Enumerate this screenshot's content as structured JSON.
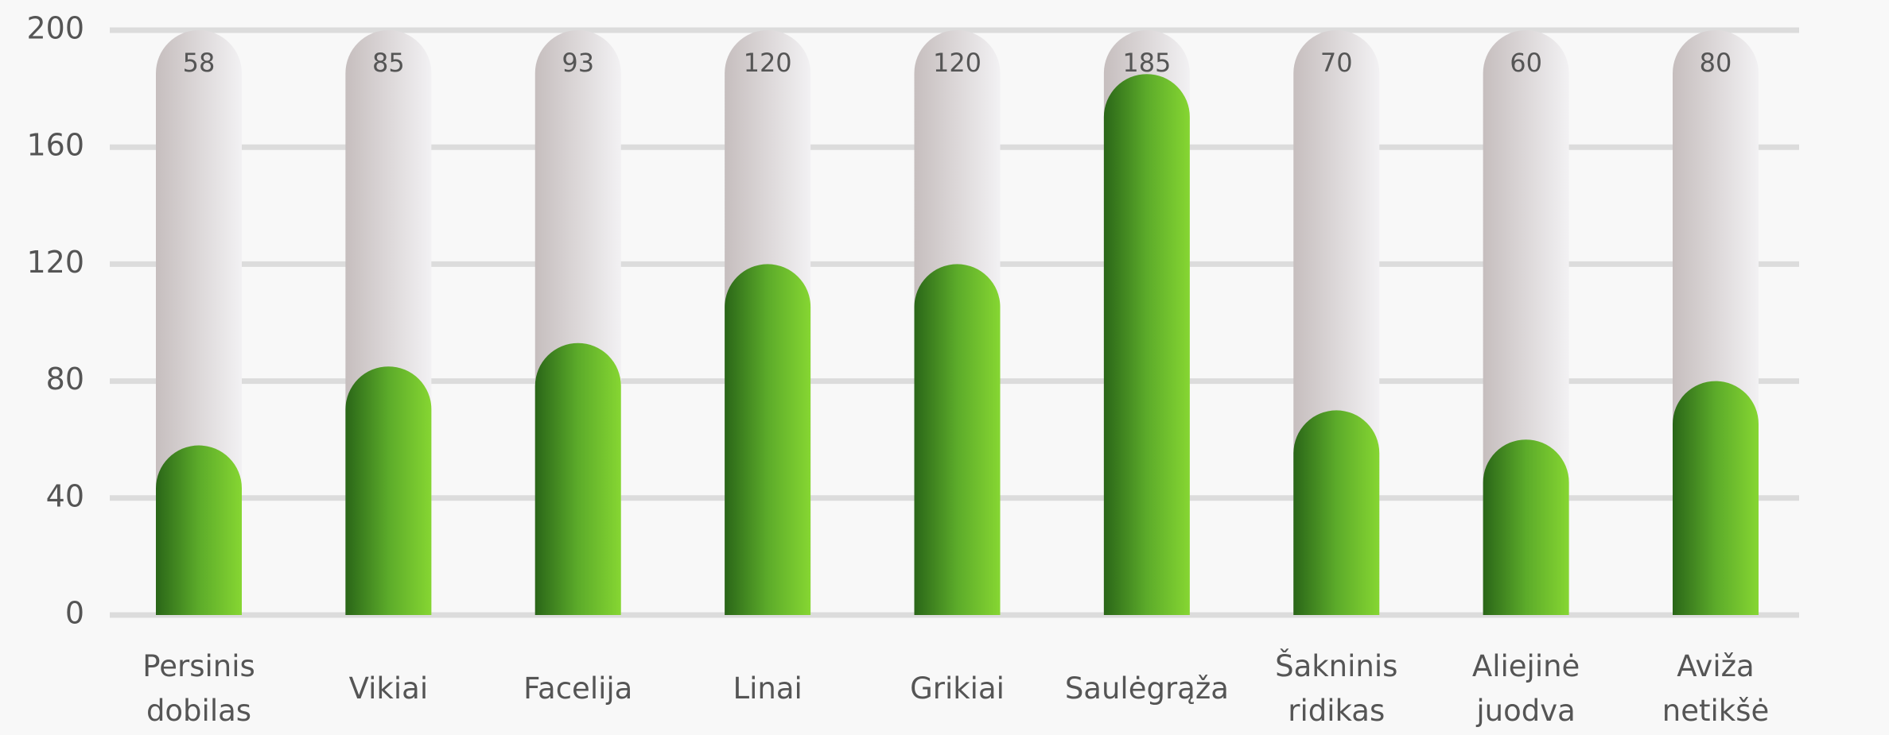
{
  "chart_data": {
    "type": "bar",
    "categories": [
      "Persinis\ndobilas",
      "Vikiai",
      "Facelija",
      "Linai",
      "Grikiai",
      "Saulėgrąža",
      "Šakninis\nridikas",
      "Aliejinė\njuodva",
      "Aviža\nnetikšė"
    ],
    "values": [
      58,
      85,
      93,
      120,
      120,
      185,
      70,
      60,
      80
    ],
    "color": "#5cab2a",
    "ylim": [
      0,
      200
    ],
    "yticks": [
      0,
      40,
      80,
      120,
      160,
      200
    ],
    "grid": true
  }
}
